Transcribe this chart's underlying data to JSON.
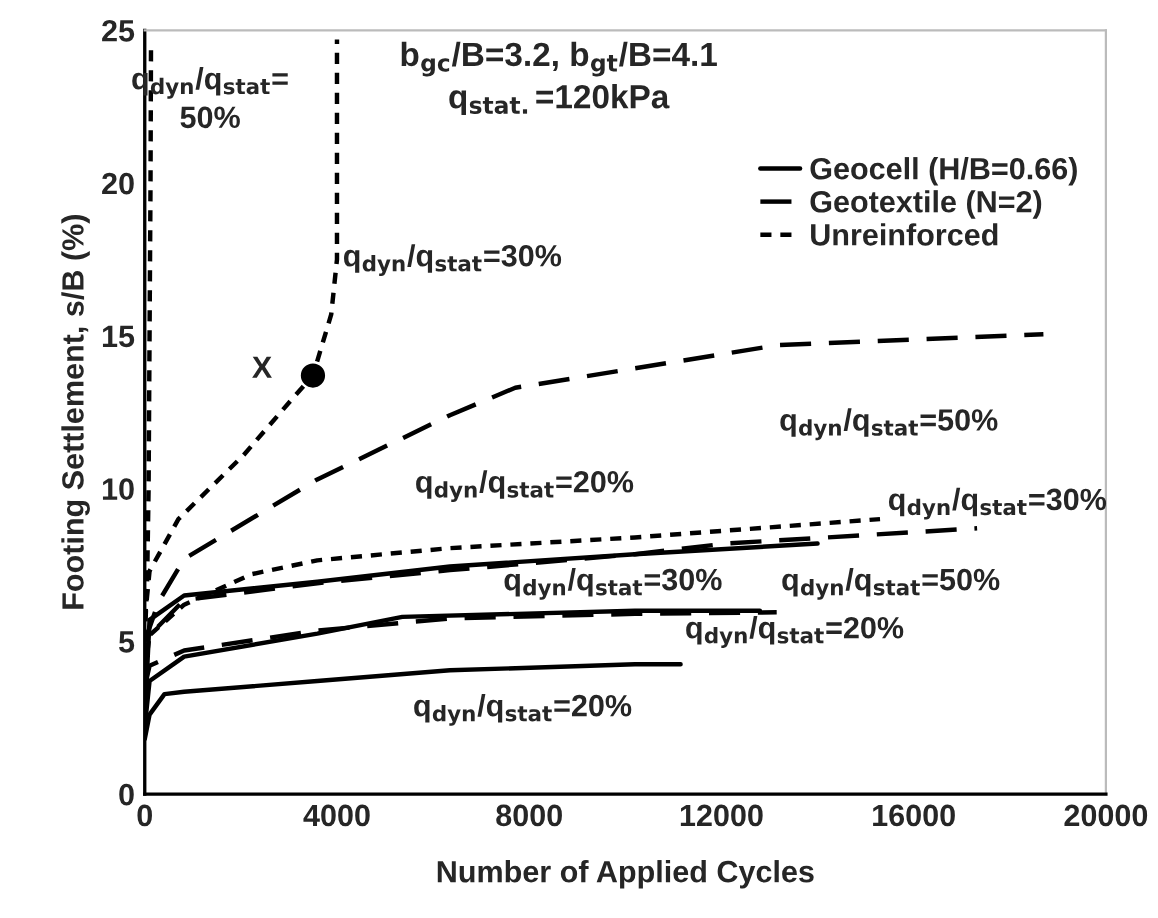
{
  "chart_data": {
    "type": "line",
    "xlabel": "Number of Applied Cycles",
    "ylabel": "Footing Settlement, s/B (%)",
    "xlim": [
      0,
      20000
    ],
    "ylim": [
      0,
      25
    ],
    "xticks": [
      0,
      4000,
      8000,
      12000,
      16000,
      20000
    ],
    "yticks": [
      0,
      5,
      10,
      15,
      20,
      25
    ],
    "grid": false,
    "legend": "top right",
    "marker": "none",
    "series": [
      {
        "name": "Geocell (H/B=0.66)",
        "color": "#000000",
        "line_style": "solid",
        "x": [
          0,
          100,
          820,
          3590,
          6350,
          10200,
          14000
        ],
        "values": [
          2.5,
          5.7,
          6.5,
          6.95,
          7.45,
          7.85,
          8.2
        ]
      },
      {
        "color": "#000000",
        "line_style": "solid",
        "x": [
          0,
          100,
          820,
          3590,
          5360,
          10200,
          12800
        ],
        "values": [
          2.2,
          3.7,
          4.5,
          5.25,
          5.8,
          6.0,
          6.0
        ]
      },
      {
        "color": "#000000",
        "line_style": "solid",
        "x": [
          0,
          100,
          410,
          820,
          3590,
          6350,
          10200,
          11150
        ],
        "values": [
          1.8,
          2.6,
          3.27,
          3.35,
          3.7,
          4.05,
          4.25,
          4.25
        ]
      },
      {
        "name": "Geotextile (N=2)",
        "color": "#000000",
        "line_style": "dashed",
        "x": [
          0,
          290,
          820,
          3590,
          6350,
          7710,
          13200,
          18700
        ],
        "values": [
          5.0,
          6.3,
          7.7,
          10.3,
          12.4,
          13.3,
          14.7,
          15.05
        ]
      },
      {
        "color": "#000000",
        "line_style": "dashed",
        "x": [
          0,
          100,
          820,
          3590,
          6350,
          10200,
          12100,
          17320
        ],
        "values": [
          4.0,
          5.2,
          6.35,
          6.9,
          7.33,
          7.85,
          8.2,
          8.7
        ]
      },
      {
        "color": "#000000",
        "line_style": "dashed",
        "x": [
          0,
          100,
          820,
          3590,
          6350,
          10200,
          13150
        ],
        "values": [
          3.5,
          4.2,
          4.7,
          5.35,
          5.75,
          5.9,
          5.95
        ]
      },
      {
        "name": "Unreinforced",
        "color": "#000000",
        "line_style": "dotted",
        "x": [
          0,
          100,
          820,
          2230,
          3590,
          6350,
          10200,
          15300
        ],
        "values": [
          4.6,
          5.2,
          6.2,
          7.2,
          7.65,
          8.05,
          8.4,
          9.0
        ]
      },
      {
        "color": "#000000",
        "line_style": "dotted",
        "x": [
          0,
          100,
          700,
          2060,
          3050,
          3500,
          3880,
          4000,
          4000
        ],
        "values": [
          5.7,
          7.3,
          9.0,
          11.1,
          12.9,
          13.7,
          15.7,
          17.5,
          24.7
        ]
      },
      {
        "color": "#000000",
        "line_style": "dotted",
        "x": [
          0,
          50,
          80,
          100,
          120,
          130
        ],
        "values": [
          5.0,
          7.0,
          10.0,
          15.0,
          20.0,
          24.5
        ]
      },
      {
        "type": "scatter",
        "color": "#000000",
        "marker": "circle",
        "x": [
          3500
        ],
        "values": [
          13.7
        ]
      }
    ],
    "annotations": [
      {
        "text": "X",
        "x": 3500,
        "y": 13.7
      },
      "b$_{gc}$/B=3.2, b$_{gt}$/B=4.1\nq$_{stat.}$=120kPa",
      "q$_{dyn}$/q$_{stat}$=\n50%",
      "q$_{dyn}$/q$_{stat}$=30%",
      "q$_{dyn}$/q$_{stat}$=50%",
      "q$_{dyn}$/q$_{stat}$=20%",
      "q$_{dyn}$/q$_{stat}$=30%",
      "q$_{dyn}$/q$_{stat}$=30%",
      "q$_{dyn}$/q$_{stat}$=50%",
      "q$_{dyn}$/q$_{stat}$=20%",
      "q$_{dyn}$/q$_{stat}$=20%"
    ]
  }
}
